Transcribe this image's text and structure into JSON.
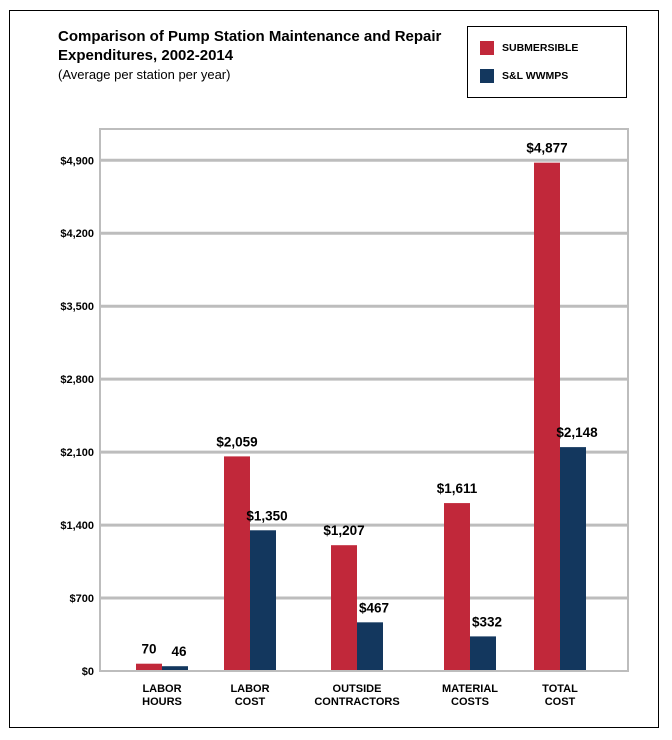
{
  "chart_data": {
    "type": "bar",
    "title": "Comparison of Pump Station Maintenance and Repair Expenditures, 2002-2014",
    "subtitle": "(Average per station per year)",
    "categories": [
      [
        "LABOR",
        "HOURS"
      ],
      [
        "LABOR",
        "COST"
      ],
      [
        "OUTSIDE",
        "CONTRACTORS"
      ],
      [
        "MATERIAL",
        "COSTS"
      ],
      [
        "TOTAL",
        "COST"
      ]
    ],
    "series": [
      {
        "name": "SUBMERSIBLE",
        "color": "#c1283a",
        "values": [
          70,
          2059,
          1207,
          1611,
          4877
        ],
        "labels": [
          "70",
          "$2,059",
          "$1,207",
          "$1,611",
          "$4,877"
        ]
      },
      {
        "name": "S&L WWMPS",
        "color": "#13375e",
        "values": [
          46,
          1350,
          467,
          332,
          2148
        ],
        "labels": [
          "46",
          "$1,350",
          "$467",
          "$332",
          "$2,148"
        ]
      }
    ],
    "yticks": [
      0,
      700,
      1400,
      2100,
      2800,
      3500,
      4200,
      4900
    ],
    "ytick_labels": [
      "$0",
      "$700",
      "$1,400",
      "$2,100",
      "$2,800",
      "$3,500",
      "$4,200",
      "$4,900"
    ],
    "ylim": [
      0,
      5200
    ],
    "xlabel": "",
    "ylabel": "",
    "grid": true,
    "legend": "top-right"
  }
}
